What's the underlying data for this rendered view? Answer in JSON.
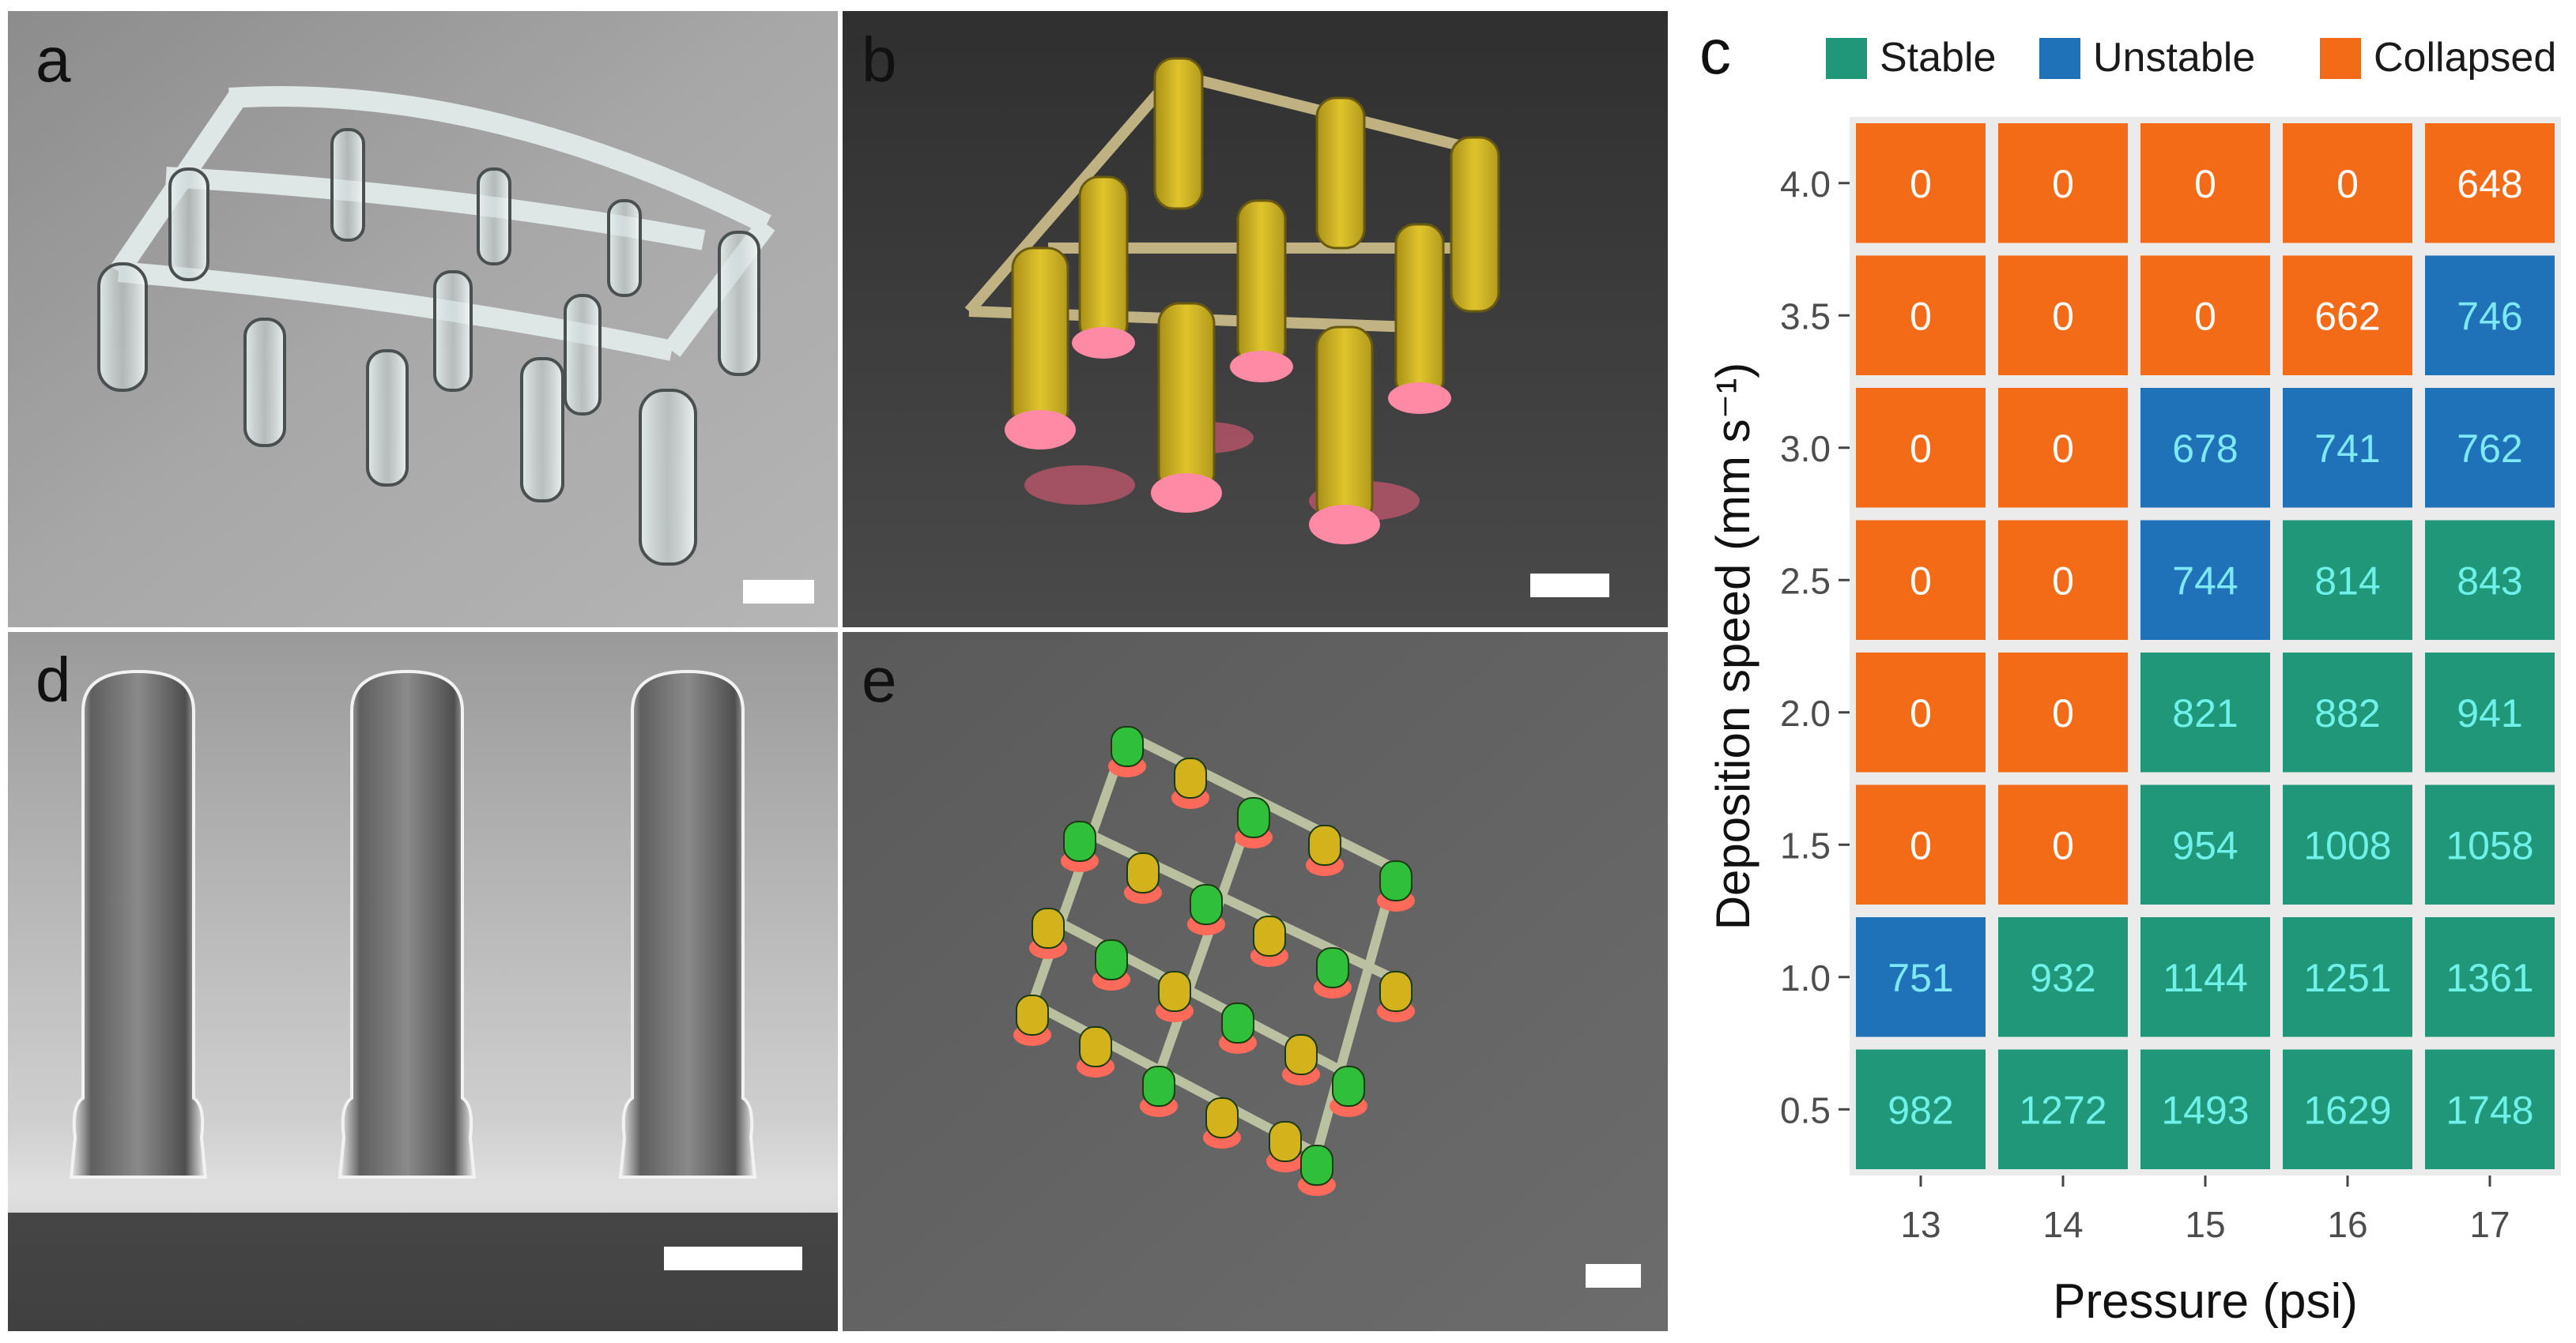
{
  "panels": {
    "a": {
      "label": "a"
    },
    "b": {
      "label": "b"
    },
    "c": {
      "label": "c"
    },
    "d": {
      "label": "d"
    },
    "e": {
      "label": "e"
    }
  },
  "chart_data": {
    "type": "heatmap",
    "xlabel": "Pressure (psi)",
    "ylabel": "Deposition speed (mm s⁻¹)",
    "x_categories": [
      "13",
      "14",
      "15",
      "16",
      "17"
    ],
    "y_categories": [
      "4.0",
      "3.5",
      "3.0",
      "2.5",
      "2.0",
      "1.5",
      "1.0",
      "0.5"
    ],
    "legend": {
      "position": "top",
      "entries": [
        {
          "name": "Stable",
          "color": "#21977a"
        },
        {
          "name": "Unstable",
          "color": "#1f72b8"
        },
        {
          "name": "Collapsed",
          "color": "#f36a17"
        }
      ]
    },
    "cells": [
      [
        {
          "v": "0",
          "s": "Collapsed"
        },
        {
          "v": "0",
          "s": "Collapsed"
        },
        {
          "v": "0",
          "s": "Collapsed"
        },
        {
          "v": "0",
          "s": "Collapsed"
        },
        {
          "v": "648",
          "s": "Collapsed"
        }
      ],
      [
        {
          "v": "0",
          "s": "Collapsed"
        },
        {
          "v": "0",
          "s": "Collapsed"
        },
        {
          "v": "0",
          "s": "Collapsed"
        },
        {
          "v": "662",
          "s": "Collapsed"
        },
        {
          "v": "746",
          "s": "Unstable"
        }
      ],
      [
        {
          "v": "0",
          "s": "Collapsed"
        },
        {
          "v": "0",
          "s": "Collapsed"
        },
        {
          "v": "678",
          "s": "Unstable"
        },
        {
          "v": "741",
          "s": "Unstable"
        },
        {
          "v": "762",
          "s": "Unstable"
        }
      ],
      [
        {
          "v": "0",
          "s": "Collapsed"
        },
        {
          "v": "0",
          "s": "Collapsed"
        },
        {
          "v": "744",
          "s": "Unstable"
        },
        {
          "v": "814",
          "s": "Stable"
        },
        {
          "v": "843",
          "s": "Stable"
        }
      ],
      [
        {
          "v": "0",
          "s": "Collapsed"
        },
        {
          "v": "0",
          "s": "Collapsed"
        },
        {
          "v": "821",
          "s": "Stable"
        },
        {
          "v": "882",
          "s": "Stable"
        },
        {
          "v": "941",
          "s": "Stable"
        }
      ],
      [
        {
          "v": "0",
          "s": "Collapsed"
        },
        {
          "v": "0",
          "s": "Collapsed"
        },
        {
          "v": "954",
          "s": "Stable"
        },
        {
          "v": "1008",
          "s": "Stable"
        },
        {
          "v": "1058",
          "s": "Stable"
        }
      ],
      [
        {
          "v": "751",
          "s": "Unstable"
        },
        {
          "v": "932",
          "s": "Stable"
        },
        {
          "v": "1144",
          "s": "Stable"
        },
        {
          "v": "1251",
          "s": "Stable"
        },
        {
          "v": "1361",
          "s": "Stable"
        }
      ],
      [
        {
          "v": "982",
          "s": "Stable"
        },
        {
          "v": "1272",
          "s": "Stable"
        },
        {
          "v": "1493",
          "s": "Stable"
        },
        {
          "v": "1629",
          "s": "Stable"
        },
        {
          "v": "1748",
          "s": "Stable"
        }
      ]
    ],
    "cell_text_colors": {
      "Stable": "#6ff0e8",
      "Unstable": "#7ee8f4",
      "Collapsed": "#ffffff"
    },
    "plot_background": "#ebebeb",
    "grid": true
  }
}
